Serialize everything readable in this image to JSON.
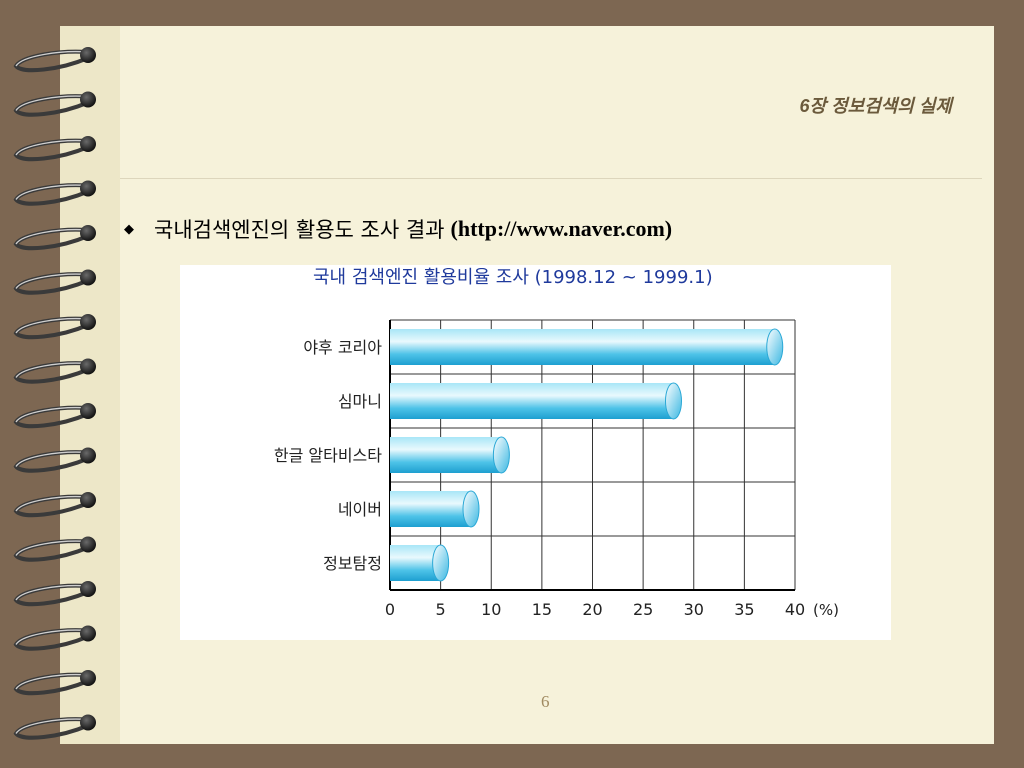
{
  "header": {
    "title": "6장  정보검색의 실제"
  },
  "bullet": {
    "symbol": "◆",
    "text": "국내검색엔진의 활용도 조사 결과",
    "url": "(http://www.naver.com)"
  },
  "page_number": "6",
  "colors": {
    "background": "#7d6752",
    "page": "#f6f2da",
    "title": "#6b5a3c",
    "bar": "#28b4e0",
    "chart_title": "#1f3a9c"
  },
  "chart_data": {
    "type": "bar",
    "orientation": "horizontal",
    "title": "국내 검색엔진 활용비율 조사 (1998.12 ~ 1999.1)",
    "categories": [
      "야후 코리아",
      "심마니",
      "한글 알타비스타",
      "네이버",
      "정보탐정"
    ],
    "values": [
      38,
      28,
      11,
      8,
      5
    ],
    "xlim": [
      0,
      40
    ],
    "xticks": [
      "0",
      "5",
      "10",
      "15",
      "20",
      "25",
      "30",
      "35",
      "40"
    ],
    "xunit": "(%)",
    "grid": true
  }
}
